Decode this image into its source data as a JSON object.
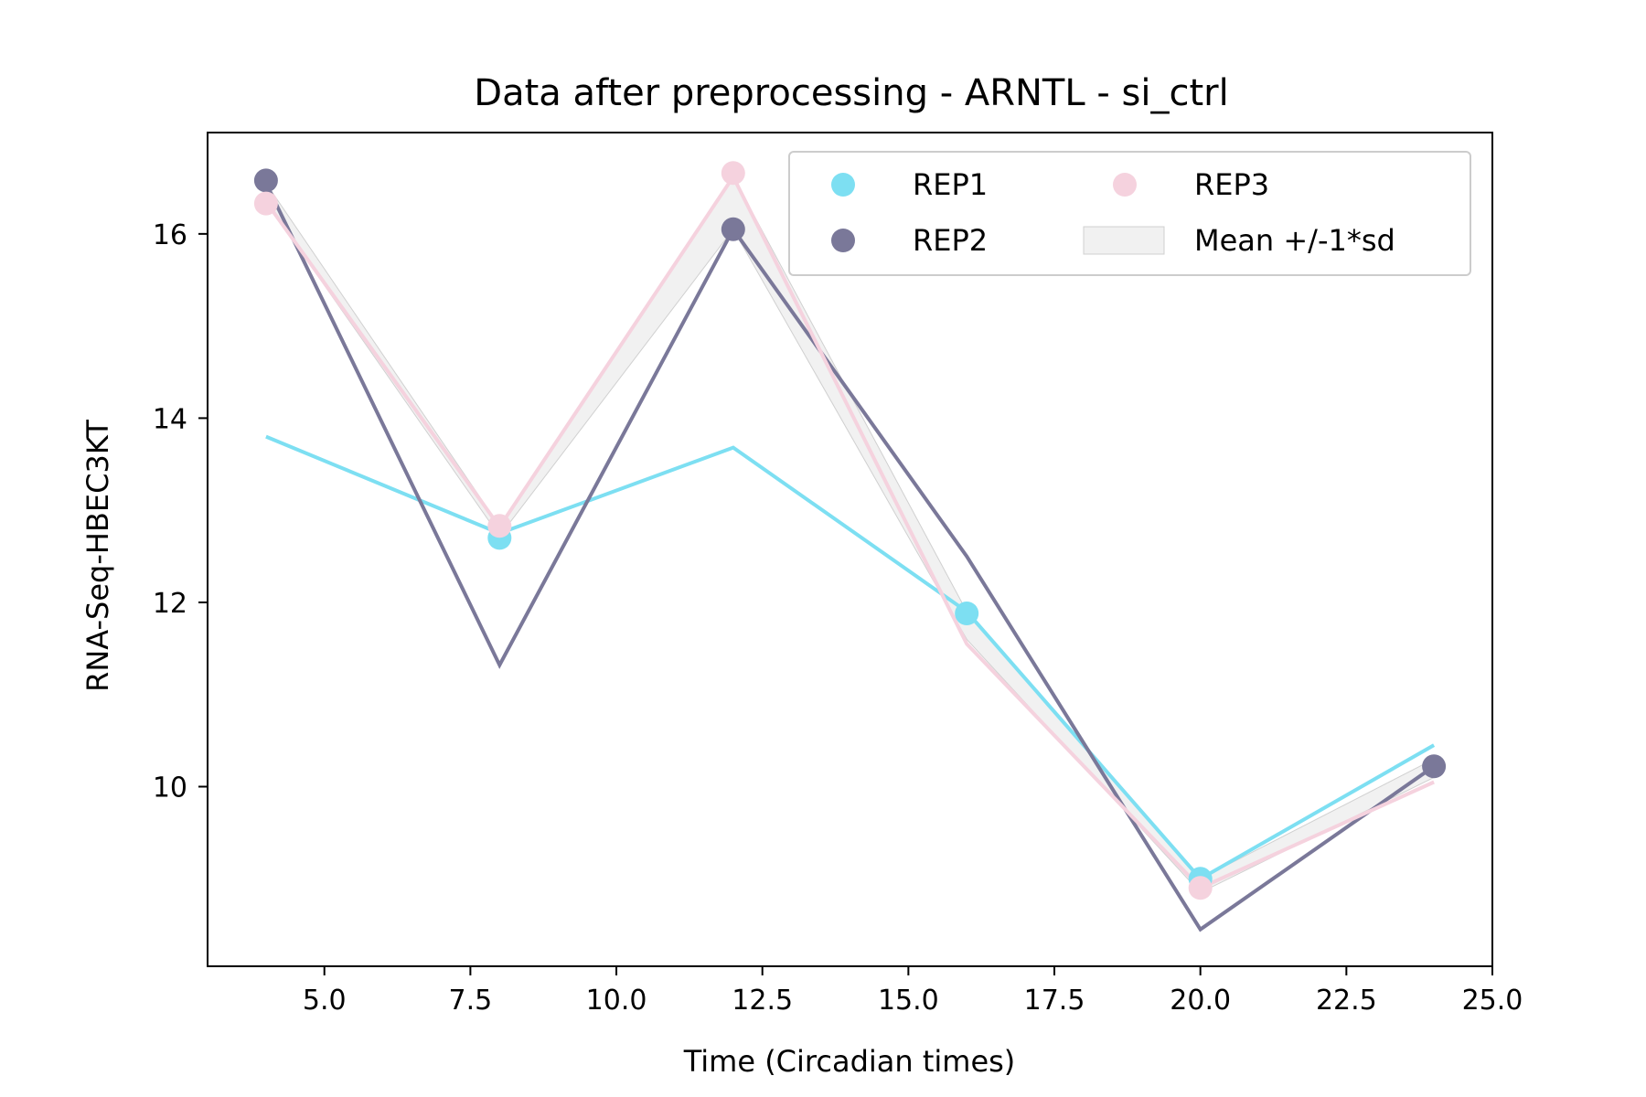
{
  "chart_data": {
    "type": "line",
    "title": "Data after preprocessing - ARNTL - si_ctrl",
    "xlabel": "Time (Circadian times)",
    "ylabel": "RNA-Seq-HBEC3KT",
    "xlim": [
      3.0,
      25.0
    ],
    "ylim": [
      8.05,
      17.1
    ],
    "xticks": [
      5.0,
      7.5,
      10.0,
      12.5,
      15.0,
      17.5,
      20.0,
      22.5,
      25.0
    ],
    "xtick_labels": [
      "5.0",
      "7.5",
      "10.0",
      "12.5",
      "15.0",
      "17.5",
      "20.0",
      "22.5",
      "25.0"
    ],
    "yticks": [
      10,
      12,
      14,
      16
    ],
    "ytick_labels": [
      "10",
      "12",
      "14",
      "16"
    ],
    "x": [
      4,
      8,
      12,
      16,
      20,
      24
    ],
    "grid": false,
    "legend_position": "top-right",
    "series": [
      {
        "name": "REP1",
        "color": "#7ddff2",
        "line": [
          13.8,
          12.75,
          13.68,
          11.9,
          9.0,
          10.45
        ],
        "points": [
          null,
          12.7,
          null,
          11.88,
          9.0,
          null
        ]
      },
      {
        "name": "REP2",
        "color": "#7a7899",
        "line": [
          16.55,
          11.32,
          16.05,
          12.5,
          8.45,
          10.22
        ],
        "points": [
          16.58,
          null,
          16.05,
          null,
          null,
          10.22
        ]
      },
      {
        "name": "REP3",
        "color": "#f5d2de",
        "line": [
          16.35,
          12.82,
          16.62,
          11.55,
          8.9,
          10.05
        ],
        "points": [
          16.33,
          12.83,
          16.66,
          null,
          8.9,
          null
        ]
      }
    ],
    "band": {
      "name": "Mean +/-1*sd",
      "color": "#e8e8e8",
      "upper": [
        16.55,
        12.83,
        16.62,
        11.9,
        9.0,
        10.3
      ],
      "lower": [
        16.35,
        12.72,
        16.05,
        11.6,
        8.85,
        10.1
      ]
    }
  }
}
